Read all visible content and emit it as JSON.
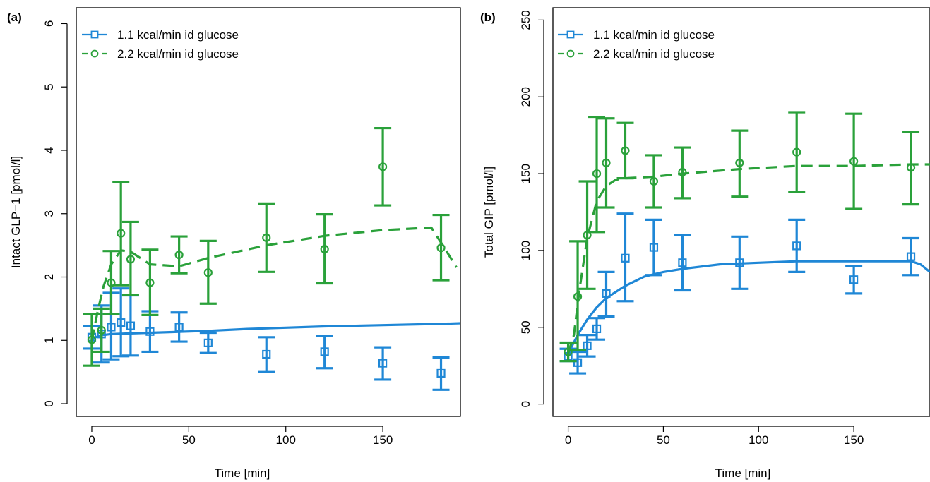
{
  "colors": {
    "blue": "#1F87D6",
    "green": "#2AA13A"
  },
  "chart_data": [
    {
      "panel": "(a)",
      "type": "line",
      "xlabel": "Time [min]",
      "ylabel": "Intact GLP−1 [pmol/l]",
      "xlim": [
        -8,
        190
      ],
      "ylim": [
        -0.2,
        6.25
      ],
      "xticks": [
        0,
        50,
        100,
        150
      ],
      "yticks": [
        0,
        1,
        2,
        3,
        4,
        5,
        6
      ],
      "xtick_labels": [
        "0",
        "50",
        "100",
        "150"
      ],
      "ytick_labels": [
        "0",
        "1",
        "2",
        "3",
        "4",
        "5",
        "6"
      ],
      "legend": {
        "placement": "top-left",
        "entries": [
          "1.1 kcal/min id glucose",
          "2.2 kcal/min id glucose"
        ]
      },
      "series": [
        {
          "name": "1.1 kcal/min id glucose",
          "color": "blue",
          "dash": false,
          "marker": "square",
          "obs_x": [
            0,
            5,
            10,
            15,
            20,
            30,
            45,
            60,
            90,
            120,
            150,
            180
          ],
          "obs_y": [
            1.05,
            1.1,
            1.21,
            1.28,
            1.23,
            1.14,
            1.21,
            0.96,
            0.78,
            0.82,
            0.64,
            0.48
          ],
          "err_low": [
            0.87,
            0.65,
            0.7,
            0.75,
            0.76,
            0.82,
            0.98,
            0.8,
            0.5,
            0.56,
            0.38,
            0.22
          ],
          "err_high": [
            1.23,
            1.55,
            1.75,
            1.82,
            1.71,
            1.46,
            1.44,
            1.12,
            1.05,
            1.07,
            0.89,
            0.73
          ],
          "fit_x": [
            0,
            2,
            5,
            10,
            20,
            30,
            40,
            60,
            80,
            100,
            120,
            150,
            180,
            190
          ],
          "fit_y": [
            1.0,
            1.05,
            1.08,
            1.1,
            1.11,
            1.12,
            1.13,
            1.15,
            1.18,
            1.2,
            1.22,
            1.24,
            1.26,
            1.27
          ]
        },
        {
          "name": "2.2 kcal/min id glucose",
          "color": "green",
          "dash": true,
          "marker": "circle",
          "obs_x": [
            0,
            5,
            10,
            15,
            20,
            30,
            45,
            60,
            90,
            120,
            150,
            180
          ],
          "obs_y": [
            1.01,
            1.16,
            1.91,
            2.69,
            2.28,
            1.91,
            2.35,
            2.07,
            2.62,
            2.44,
            3.74,
            2.46
          ],
          "err_low": [
            0.6,
            0.82,
            1.42,
            1.87,
            1.72,
            1.4,
            2.06,
            1.58,
            2.08,
            1.9,
            3.13,
            1.95
          ],
          "err_high": [
            1.42,
            1.5,
            2.41,
            3.5,
            2.87,
            2.43,
            2.64,
            2.57,
            3.16,
            2.99,
            4.35,
            2.98
          ],
          "fit_x": [
            0,
            3,
            6,
            10,
            15,
            20,
            25,
            30,
            45,
            60,
            90,
            120,
            150,
            175,
            182,
            188
          ],
          "fit_y": [
            1.0,
            1.45,
            1.85,
            2.2,
            2.42,
            2.4,
            2.3,
            2.2,
            2.17,
            2.3,
            2.5,
            2.65,
            2.74,
            2.78,
            2.45,
            2.15
          ]
        }
      ]
    },
    {
      "panel": "(b)",
      "type": "line",
      "xlabel": "Time [min]",
      "ylabel": "Total GIP [pmol/l]",
      "xlim": [
        -8,
        190
      ],
      "ylim": [
        -8,
        258
      ],
      "xticks": [
        0,
        50,
        100,
        150
      ],
      "yticks": [
        0,
        50,
        100,
        150,
        200,
        250
      ],
      "xtick_labels": [
        "0",
        "50",
        "100",
        "150"
      ],
      "ytick_labels": [
        "0",
        "50",
        "100",
        "150",
        "200",
        "250"
      ],
      "legend": {
        "placement": "top-left",
        "entries": [
          "1.1 kcal/min id glucose",
          "2.2 kcal/min id glucose"
        ]
      },
      "series": [
        {
          "name": "1.1 kcal/min id glucose",
          "color": "blue",
          "dash": false,
          "marker": "square",
          "obs_x": [
            0,
            5,
            10,
            15,
            20,
            30,
            45,
            60,
            90,
            120,
            150,
            180
          ],
          "obs_y": [
            31,
            27,
            38,
            49,
            72,
            95,
            102,
            92,
            92,
            103,
            81,
            96
          ],
          "err_low": [
            28,
            20,
            31,
            42,
            57,
            67,
            84,
            74,
            75,
            86,
            72,
            84
          ],
          "err_high": [
            36,
            34,
            45,
            56,
            86,
            124,
            120,
            110,
            109,
            120,
            90,
            108
          ],
          "fit_x": [
            0,
            5,
            10,
            15,
            20,
            30,
            40,
            50,
            60,
            80,
            100,
            120,
            150,
            180,
            185,
            190
          ],
          "fit_y": [
            33,
            45,
            55,
            63,
            69,
            77,
            83,
            86,
            88,
            91,
            92,
            93,
            93,
            93,
            91,
            86
          ]
        },
        {
          "name": "2.2 kcal/min id glucose",
          "color": "green",
          "dash": true,
          "marker": "circle",
          "obs_x": [
            0,
            5,
            10,
            15,
            20,
            30,
            45,
            60,
            90,
            120,
            150,
            180
          ],
          "obs_y": [
            34,
            70,
            110,
            150,
            157,
            165,
            145,
            151,
            157,
            164,
            158,
            154
          ],
          "err_low": [
            28,
            35,
            75,
            112,
            128,
            147,
            128,
            134,
            135,
            138,
            127,
            130
          ],
          "err_high": [
            40,
            106,
            145,
            187,
            186,
            183,
            162,
            167,
            178,
            190,
            189,
            177
          ],
          "fit_x": [
            0,
            3,
            6,
            10,
            15,
            20,
            25,
            30,
            45,
            60,
            90,
            120,
            150,
            180,
            190
          ],
          "fit_y": [
            33,
            45,
            75,
            108,
            132,
            142,
            146,
            147,
            148,
            150,
            153,
            155,
            155,
            156,
            156
          ]
        }
      ]
    }
  ]
}
